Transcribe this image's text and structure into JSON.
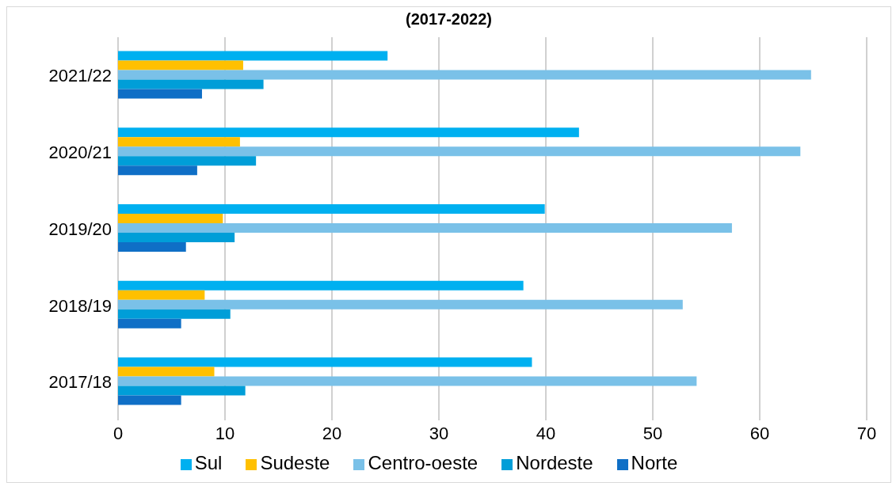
{
  "chart_data": {
    "type": "bar",
    "orientation": "horizontal",
    "title": "(2017-2022)",
    "categories": [
      "2021/22",
      "2020/21",
      "2019/20",
      "2018/19",
      "2017/18"
    ],
    "series": [
      {
        "name": "Sul",
        "color": "#00b0f0",
        "values": [
          25.2,
          43.1,
          39.9,
          37.9,
          38.7
        ]
      },
      {
        "name": "Sudeste",
        "color": "#ffc000",
        "values": [
          11.7,
          11.4,
          9.8,
          8.1,
          9.0
        ]
      },
      {
        "name": "Centro-oeste",
        "color": "#7ac1e8",
        "values": [
          64.8,
          63.8,
          57.4,
          52.8,
          54.1
        ]
      },
      {
        "name": "Nordeste",
        "color": "#009ed8",
        "values": [
          13.6,
          12.9,
          10.9,
          10.5,
          11.9
        ]
      },
      {
        "name": "Norte",
        "color": "#0f6fc6",
        "values": [
          7.85,
          7.4,
          6.35,
          5.9,
          5.9
        ]
      }
    ],
    "xlim": [
      0,
      70
    ],
    "xticks": [
      0,
      10,
      20,
      30,
      40,
      50,
      60,
      70
    ],
    "grid": "x",
    "legend": "bottom"
  }
}
